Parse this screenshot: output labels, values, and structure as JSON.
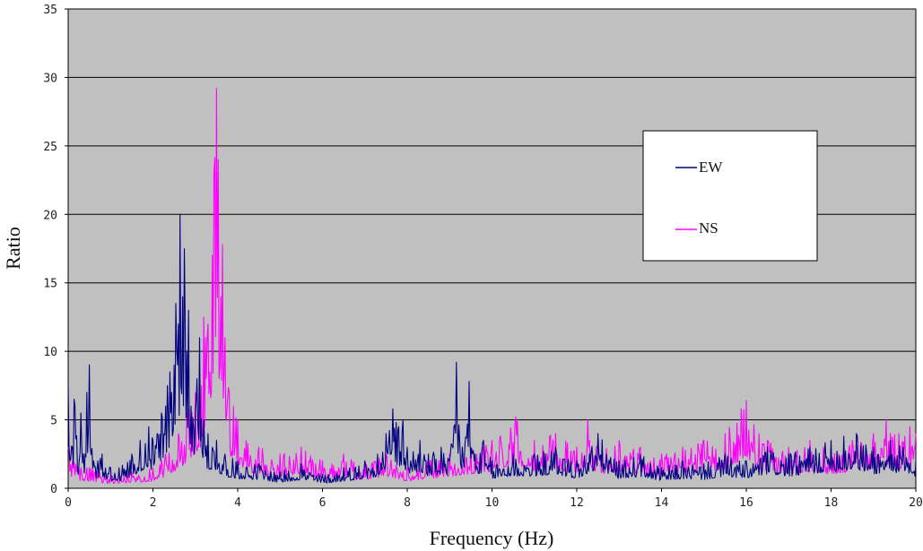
{
  "chart_data": {
    "type": "line",
    "xlabel": "Frequency (Hz)",
    "ylabel": "Ratio",
    "xlim": [
      0,
      20
    ],
    "ylim": [
      0,
      35
    ],
    "x_ticks": [
      0,
      2,
      4,
      6,
      8,
      10,
      12,
      14,
      16,
      18,
      20
    ],
    "y_ticks": [
      0,
      5,
      10,
      15,
      20,
      25,
      30,
      35
    ],
    "grid": "horizontal",
    "plot_background": "#c0c0c0",
    "legend_position": "top-right",
    "series": [
      {
        "name": "EW",
        "color": "#000080",
        "peaks": [
          [
            0.0,
            7.5
          ],
          [
            0.1,
            3.0
          ],
          [
            0.15,
            6.5
          ],
          [
            0.25,
            2.0
          ],
          [
            0.3,
            5.5
          ],
          [
            0.4,
            2.5
          ],
          [
            0.45,
            7.0
          ],
          [
            0.5,
            9.0
          ],
          [
            0.6,
            2.0
          ],
          [
            0.8,
            2.5
          ],
          [
            1.0,
            1.5
          ],
          [
            1.2,
            1.5
          ],
          [
            1.5,
            2.5
          ],
          [
            1.7,
            3.5
          ],
          [
            1.9,
            4.5
          ],
          [
            2.0,
            3.5
          ],
          [
            2.1,
            4.0
          ],
          [
            2.2,
            5.5
          ],
          [
            2.3,
            6.0
          ],
          [
            2.35,
            7.5
          ],
          [
            2.4,
            8.5
          ],
          [
            2.45,
            7.0
          ],
          [
            2.5,
            9.0
          ],
          [
            2.55,
            13.5
          ],
          [
            2.6,
            12.0
          ],
          [
            2.65,
            20.0
          ],
          [
            2.7,
            14.0
          ],
          [
            2.75,
            17.5
          ],
          [
            2.8,
            10.0
          ],
          [
            2.85,
            13.0
          ],
          [
            2.9,
            6.0
          ],
          [
            3.0,
            5.5
          ],
          [
            3.05,
            8.0
          ],
          [
            3.1,
            11.0
          ],
          [
            3.2,
            5.0
          ],
          [
            3.3,
            4.0
          ],
          [
            3.5,
            3.5
          ],
          [
            3.7,
            2.5
          ],
          [
            4.0,
            2.0
          ],
          [
            4.5,
            1.8
          ],
          [
            5.0,
            1.2
          ],
          [
            5.5,
            1.8
          ],
          [
            6.0,
            1.0
          ],
          [
            6.5,
            1.5
          ],
          [
            7.0,
            2.0
          ],
          [
            7.3,
            2.5
          ],
          [
            7.5,
            4.0
          ],
          [
            7.65,
            5.8
          ],
          [
            7.8,
            4.5
          ],
          [
            7.9,
            5.0
          ],
          [
            8.0,
            3.0
          ],
          [
            8.3,
            3.5
          ],
          [
            8.5,
            2.5
          ],
          [
            8.8,
            3.0
          ],
          [
            9.0,
            2.0
          ],
          [
            9.15,
            9.2
          ],
          [
            9.3,
            3.0
          ],
          [
            9.45,
            7.8
          ],
          [
            9.6,
            2.5
          ],
          [
            9.8,
            3.5
          ],
          [
            10.0,
            2.0
          ],
          [
            10.5,
            2.5
          ],
          [
            11.0,
            2.5
          ],
          [
            11.5,
            3.0
          ],
          [
            12.0,
            2.0
          ],
          [
            12.5,
            4.0
          ],
          [
            13.0,
            2.0
          ],
          [
            13.5,
            2.5
          ],
          [
            14.0,
            1.5
          ],
          [
            14.5,
            2.0
          ],
          [
            15.0,
            1.8
          ],
          [
            15.5,
            2.5
          ],
          [
            16.0,
            2.0
          ],
          [
            16.5,
            3.0
          ],
          [
            17.0,
            2.5
          ],
          [
            17.5,
            3.0
          ],
          [
            18.0,
            3.5
          ],
          [
            18.3,
            3.8
          ],
          [
            18.6,
            4.0
          ],
          [
            19.0,
            3.0
          ],
          [
            19.4,
            3.5
          ],
          [
            19.7,
            3.0
          ],
          [
            20.0,
            2.0
          ]
        ]
      },
      {
        "name": "NS",
        "color": "#ff00ff",
        "peaks": [
          [
            0.0,
            3.0
          ],
          [
            0.1,
            2.0
          ],
          [
            0.3,
            1.5
          ],
          [
            0.5,
            1.5
          ],
          [
            1.0,
            1.0
          ],
          [
            1.5,
            1.2
          ],
          [
            2.0,
            1.5
          ],
          [
            2.3,
            2.5
          ],
          [
            2.6,
            4.0
          ],
          [
            2.8,
            5.5
          ],
          [
            3.0,
            7.0
          ],
          [
            3.1,
            9.0
          ],
          [
            3.15,
            7.5
          ],
          [
            3.2,
            12.5
          ],
          [
            3.25,
            11.0
          ],
          [
            3.3,
            12.0
          ],
          [
            3.35,
            8.5
          ],
          [
            3.4,
            17.0
          ],
          [
            3.45,
            23.0
          ],
          [
            3.5,
            29.2
          ],
          [
            3.55,
            24.0
          ],
          [
            3.6,
            14.0
          ],
          [
            3.65,
            17.8
          ],
          [
            3.7,
            11.0
          ],
          [
            3.8,
            7.0
          ],
          [
            3.9,
            6.0
          ],
          [
            4.0,
            5.0
          ],
          [
            4.2,
            3.5
          ],
          [
            4.5,
            3.0
          ],
          [
            5.0,
            2.5
          ],
          [
            5.5,
            3.0
          ],
          [
            6.0,
            2.0
          ],
          [
            6.5,
            2.5
          ],
          [
            7.0,
            1.8
          ],
          [
            7.5,
            2.5
          ],
          [
            8.0,
            1.5
          ],
          [
            8.5,
            2.0
          ],
          [
            9.0,
            2.5
          ],
          [
            9.5,
            3.0
          ],
          [
            10.0,
            3.5
          ],
          [
            10.55,
            5.2
          ],
          [
            11.0,
            3.5
          ],
          [
            11.5,
            4.0
          ],
          [
            12.0,
            3.0
          ],
          [
            12.25,
            5.0
          ],
          [
            12.5,
            3.0
          ],
          [
            13.0,
            3.5
          ],
          [
            13.5,
            3.0
          ],
          [
            14.0,
            2.5
          ],
          [
            14.5,
            3.0
          ],
          [
            15.0,
            3.5
          ],
          [
            15.5,
            4.0
          ],
          [
            16.0,
            6.4
          ],
          [
            16.3,
            4.0
          ],
          [
            16.5,
            3.5
          ],
          [
            17.0,
            3.0
          ],
          [
            17.5,
            3.5
          ],
          [
            18.0,
            3.0
          ],
          [
            18.5,
            3.5
          ],
          [
            19.0,
            4.0
          ],
          [
            19.3,
            5.0
          ],
          [
            19.6,
            4.0
          ],
          [
            19.85,
            4.5
          ],
          [
            20.0,
            4.0
          ]
        ]
      }
    ]
  }
}
